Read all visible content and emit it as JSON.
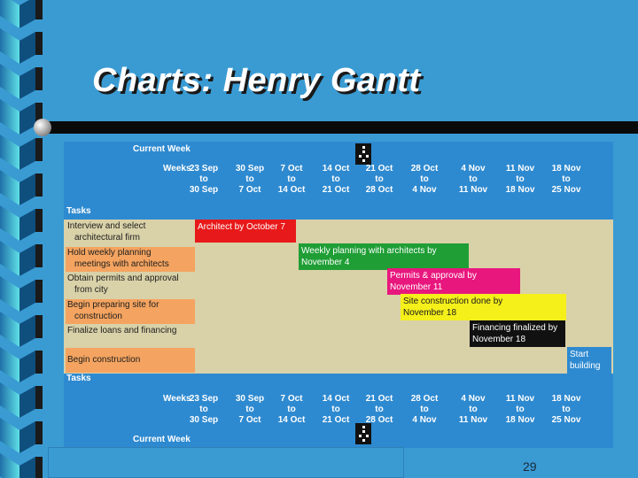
{
  "title": "Charts:  Henry Gantt",
  "page_number": "29",
  "labels": {
    "current_week": "Current Week",
    "weeks": "Weeks",
    "tasks": "Tasks"
  },
  "weeks": [
    {
      "l1": "23 Sep",
      "l2": "to",
      "l3": "30 Sep"
    },
    {
      "l1": "30 Sep",
      "l2": "to",
      "l3": "7 Oct"
    },
    {
      "l1": "7 Oct",
      "l2": "to",
      "l3": "14 Oct"
    },
    {
      "l1": "14 Oct",
      "l2": "to",
      "l3": "21 Oct"
    },
    {
      "l1": "21 Oct",
      "l2": "to",
      "l3": "28 Oct"
    },
    {
      "l1": "28 Oct",
      "l2": "to",
      "l3": "4 Nov"
    },
    {
      "l1": "4 Nov",
      "l2": "to",
      "l3": "11 Nov"
    },
    {
      "l1": "11 Nov",
      "l2": "to",
      "l3": "18 Nov"
    },
    {
      "l1": "18 Nov",
      "l2": "to",
      "l3": "25 Nov"
    }
  ],
  "tasks": [
    {
      "line1": "Interview and select",
      "line2": "architectural firm",
      "highlight": ""
    },
    {
      "line1": "Hold weekly planning",
      "line2": "meetings with architects",
      "highlight": "#f4a460"
    },
    {
      "line1": "Obtain permits and approval",
      "line2": "from city",
      "highlight": ""
    },
    {
      "line1": "Begin preparing site for",
      "line2": "construction",
      "highlight": "#f4a460"
    },
    {
      "line1": "Finalize loans and financing",
      "line2": "",
      "highlight": ""
    },
    {
      "line1": "Begin construction",
      "line2": "",
      "highlight": "#f4a460"
    }
  ],
  "bars": [
    {
      "l1": "Architect by October 7",
      "l2": "",
      "color": "#e8191a",
      "text_color": "#ffffff"
    },
    {
      "l1": "Weekly planning with architects by",
      "l2": "November 4",
      "color": "#1f9e35",
      "text_color": "#ffffff"
    },
    {
      "l1": "Permits & approval by",
      "l2": "November 11",
      "color": "#e8177d",
      "text_color": "#ffffff"
    },
    {
      "l1": "Site construction done by",
      "l2": "November 18",
      "color": "#f5ef1a",
      "text_color": "#1a1a1a"
    },
    {
      "l1": "Financing finalized by",
      "l2": "November 18",
      "color": "#111111",
      "text_color": "#ffffff"
    },
    {
      "l1": "Start",
      "l2": "building",
      "color": "#2e8ad0",
      "text_color": "#ffffff"
    }
  ],
  "colors": {
    "background": "#3a9bd3",
    "chart_bg": "#2e8ad0",
    "task_band": "#d9d1a8",
    "task_highlight": "#f4a460"
  }
}
